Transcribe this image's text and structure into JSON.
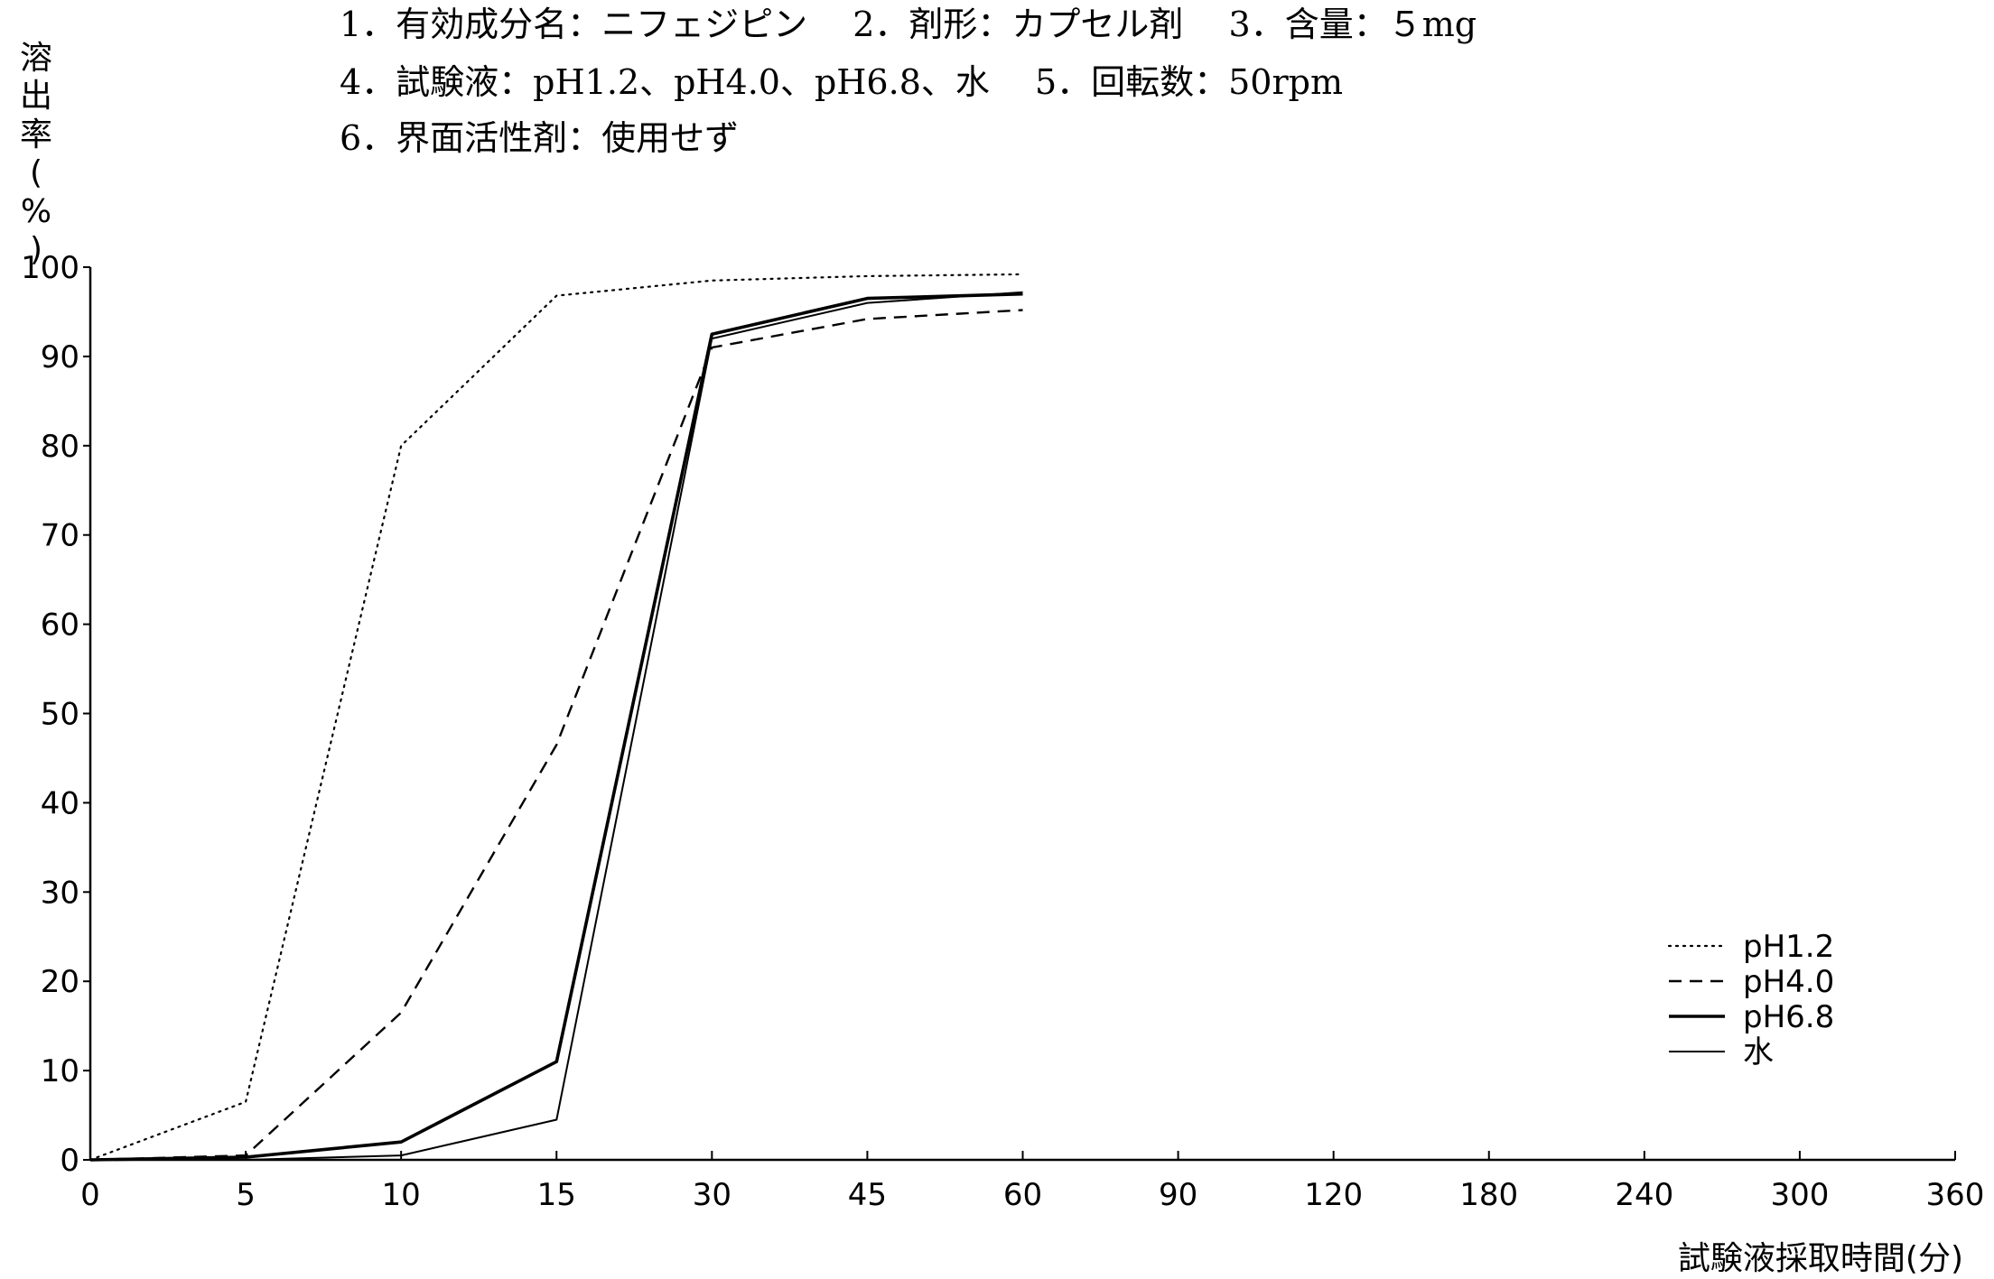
{
  "header": {
    "line1": "1．有効成分名：ニフェジピン　 2．剤形：カプセル剤　 3．含量：５mg",
    "line2": "4．試験液：pH1.2、pH4.0、pH6.8、水　 5．回転数：50rpm",
    "line3": "6．界面活性剤：使用せず"
  },
  "chart_data": {
    "type": "line",
    "ylabel": "溶出率(%)",
    "xlabel": "試験液採取時間(分)",
    "categories": [
      "0",
      "5",
      "10",
      "15",
      "30",
      "45",
      "60",
      "90",
      "120",
      "180",
      "240",
      "300",
      "360"
    ],
    "y_ticks": [
      "0",
      "10",
      "20",
      "30",
      "40",
      "50",
      "60",
      "70",
      "80",
      "90",
      "100"
    ],
    "ylim": [
      0,
      100
    ],
    "grid": false,
    "legend_position": "bottom-right",
    "series": [
      {
        "name": "pH1.2",
        "style": "dotted",
        "x": [
          "0",
          "5",
          "10",
          "15",
          "30",
          "45",
          "60"
        ],
        "values": [
          0,
          6.5,
          80,
          96.8,
          98.5,
          99,
          99.2
        ]
      },
      {
        "name": "pH4.0",
        "style": "dashed",
        "x": [
          "0",
          "5",
          "10",
          "15",
          "30",
          "45",
          "60"
        ],
        "values": [
          0,
          0.5,
          16.5,
          46.5,
          91,
          94.2,
          95.2
        ]
      },
      {
        "name": "pH6.8",
        "style": "solid-thick",
        "x": [
          "0",
          "5",
          "10",
          "15",
          "30",
          "45",
          "60"
        ],
        "values": [
          0,
          0.3,
          2,
          11,
          92.5,
          96.5,
          97
        ]
      },
      {
        "name": "水",
        "style": "solid-thin",
        "x": [
          "0",
          "5",
          "10",
          "15",
          "30",
          "45",
          "60"
        ],
        "values": [
          0,
          0,
          0.5,
          4.5,
          92,
          96,
          97.2
        ]
      }
    ],
    "colors": {
      "line": "#000000",
      "background": "#ffffff"
    }
  }
}
